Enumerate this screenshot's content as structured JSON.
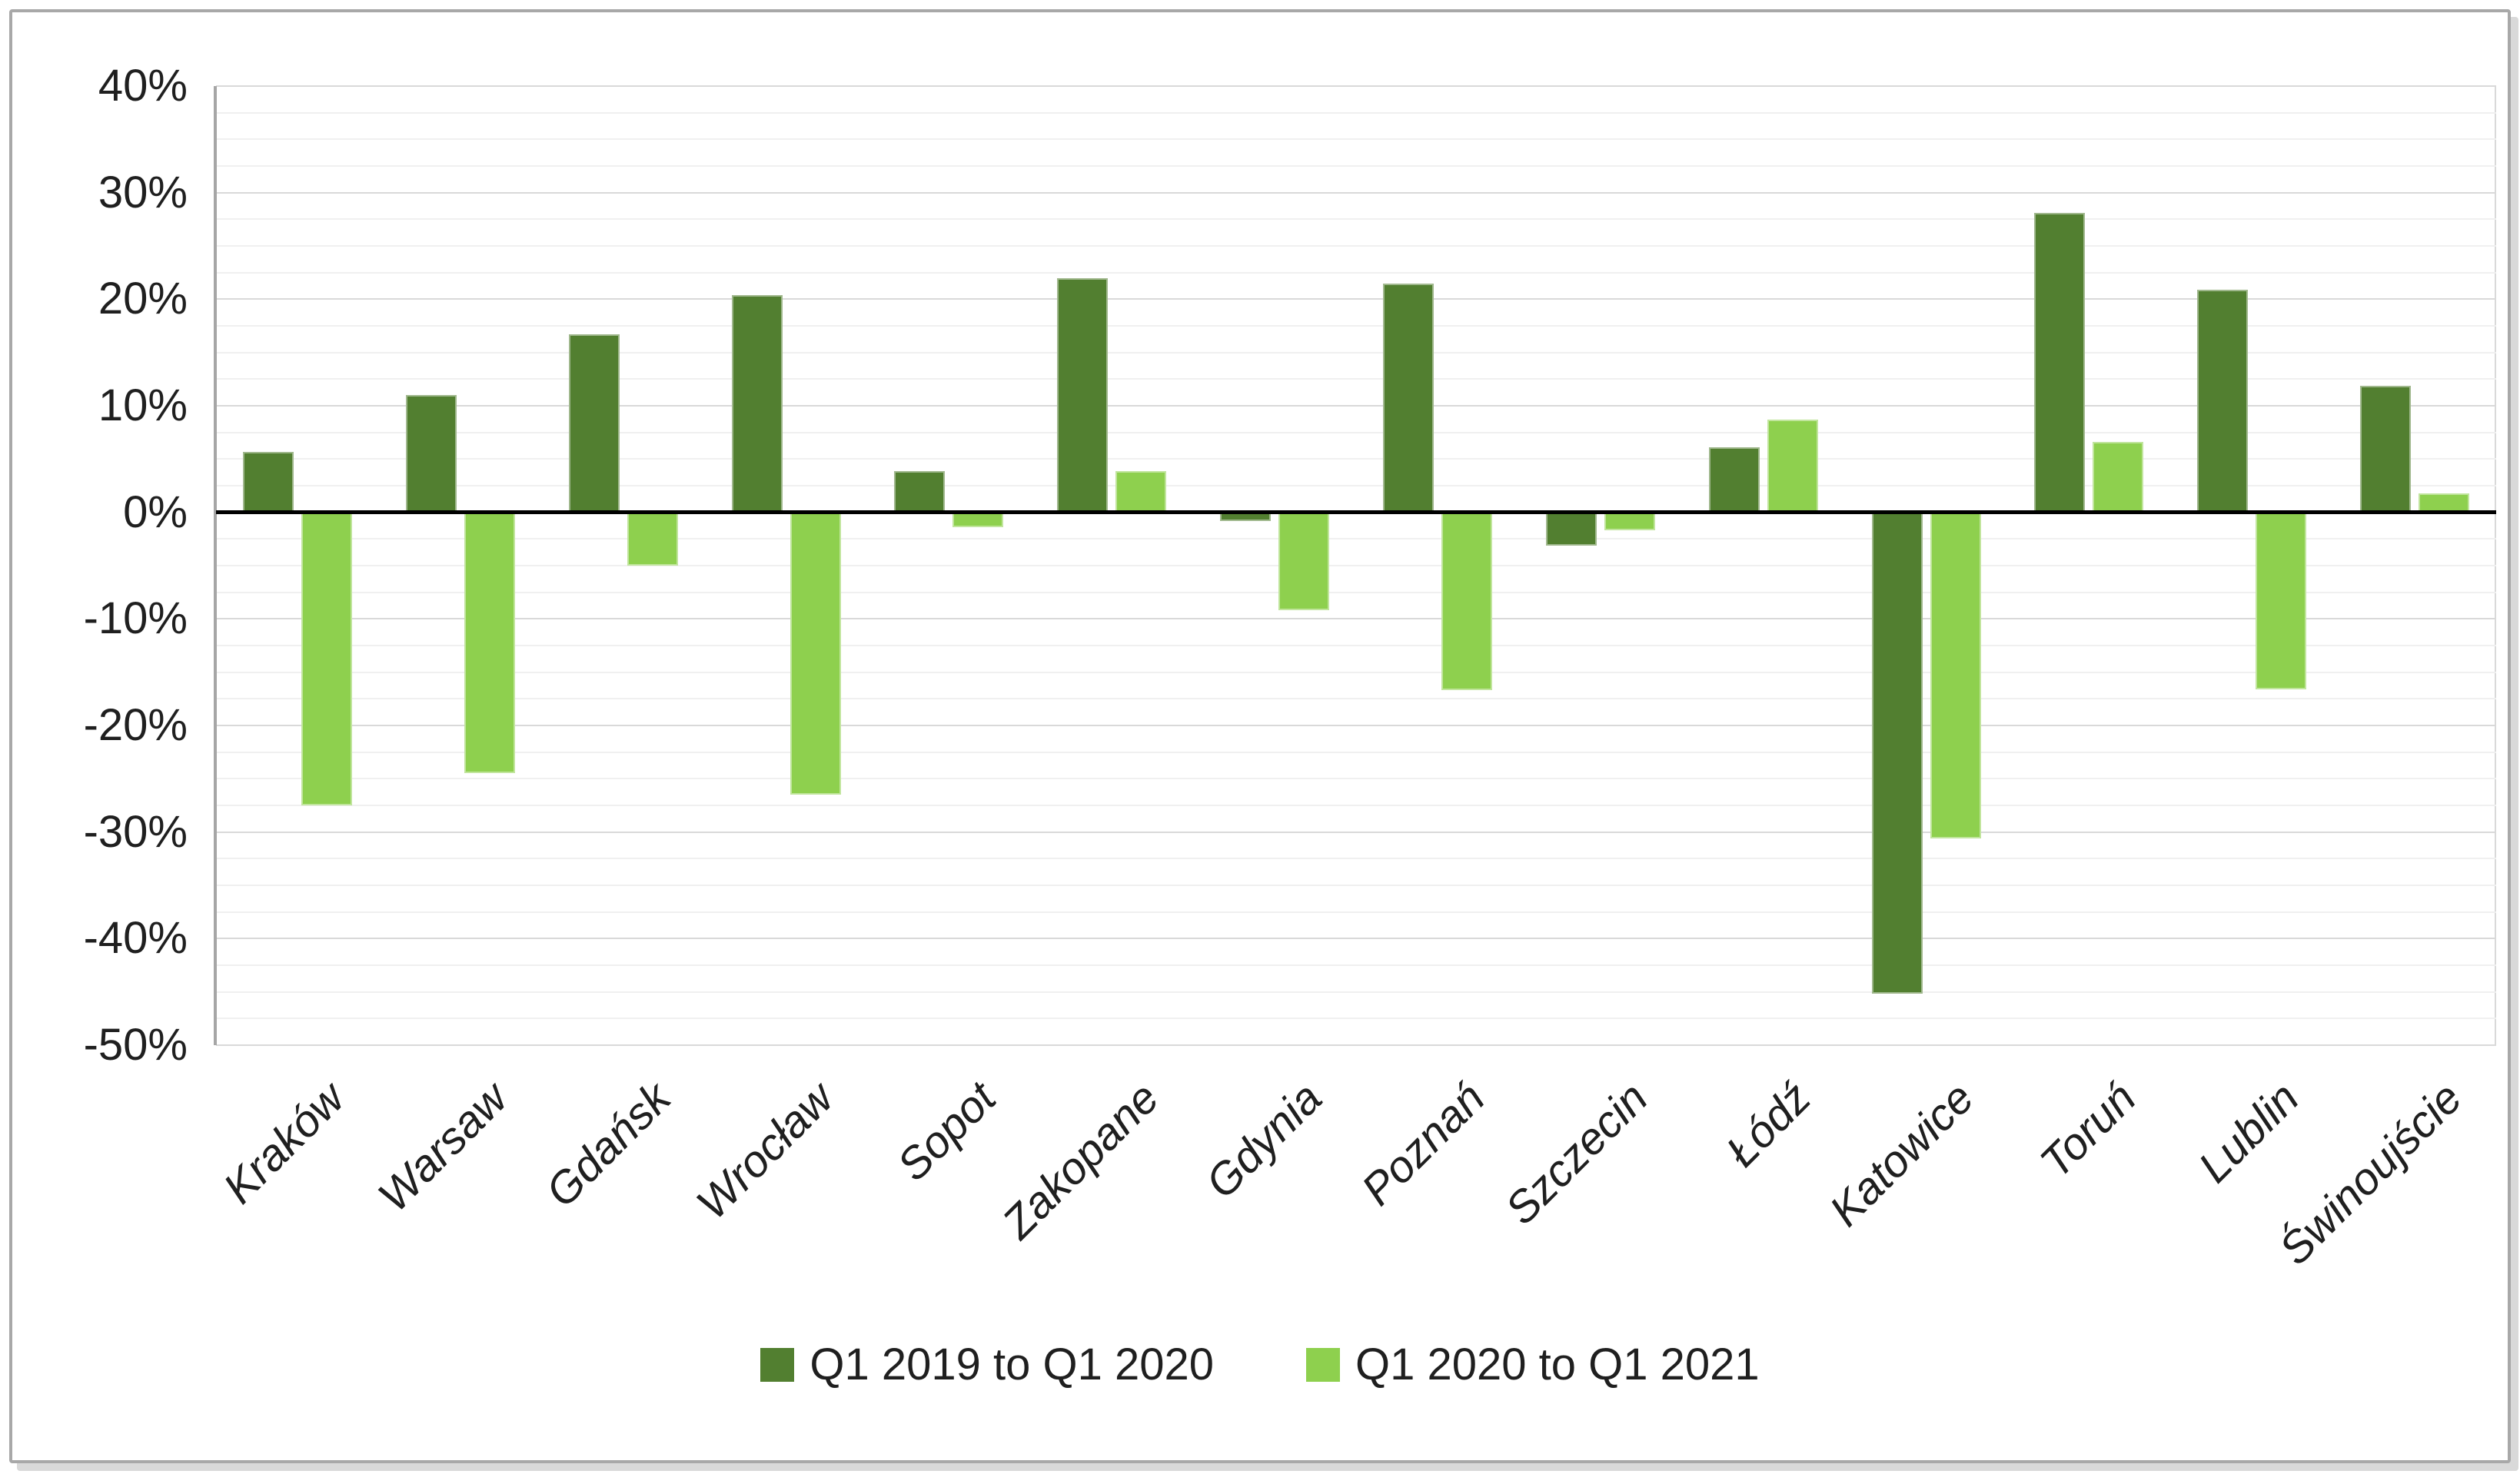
{
  "chart_data": {
    "type": "bar",
    "title": "",
    "xlabel": "",
    "ylabel": "",
    "categories": [
      "Kraków",
      "Warsaw",
      "Gdańsk",
      "Wrocław",
      "Sopot",
      "Zakopane",
      "Gdynia",
      "Poznań",
      "Szczecin",
      "Łódź",
      "Katowice",
      "Toruń",
      "Lublin",
      "Świnoujście"
    ],
    "series": [
      {
        "name": "Q1 2019 to Q1 2020",
        "color": "#527f30",
        "values": [
          5.7,
          11.0,
          16.7,
          20.4,
          3.9,
          22.0,
          -0.8,
          21.5,
          -3.1,
          6.1,
          -45.2,
          28.1,
          20.9,
          11.9
        ]
      },
      {
        "name": "Q1 2020 to Q1 2021",
        "color": "#8ed04e",
        "values": [
          -27.5,
          -24.5,
          -5.0,
          -26.5,
          -1.4,
          3.9,
          -9.2,
          -16.7,
          -1.7,
          8.7,
          -30.6,
          6.6,
          -16.6,
          1.8
        ]
      }
    ],
    "ylim": [
      -50,
      40
    ],
    "y_major_step": 10,
    "y_minor_step": 2.5,
    "y_tick_labels": [
      "40%",
      "30%",
      "20%",
      "10%",
      "0%",
      "-10%",
      "-20%",
      "-30%",
      "-40%",
      "-50%"
    ],
    "grid": "on",
    "zero_line": true,
    "legend_position": "bottom"
  },
  "colors": {
    "frame_border": "#a8a8a8",
    "background": "#ffffff",
    "grid_major": "#d9d9d9",
    "grid_minor": "#f0f0f0",
    "zero_line": "#000000",
    "axis_line": "#a6a6a6",
    "text": "#1f1f1f"
  }
}
